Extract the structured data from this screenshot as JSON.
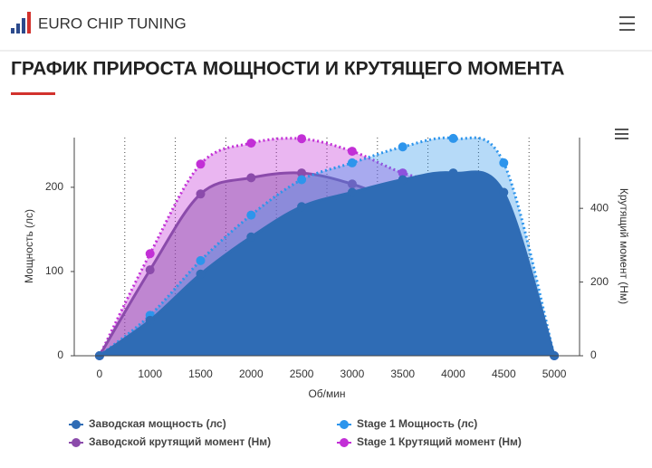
{
  "header": {
    "brand": "EURO CHIP TUNING"
  },
  "chart_data": {
    "type": "area",
    "title": "ГРАФИК ПРИРОСТА МОЩНОСТИ И КРУТЯЩЕГО МОМЕНТА",
    "x_label": "Об/мин",
    "y_label": "Мощность (лс)",
    "y2_label": "Крутящий момент (Нм)",
    "categories": [
      "0",
      "1000",
      "1500",
      "2000",
      "2500",
      "3000",
      "3500",
      "4000",
      "4500",
      "5000"
    ],
    "ylim": [
      0,
      259
    ],
    "yticks": [
      0,
      100,
      200
    ],
    "y2lim": [
      0,
      592
    ],
    "y2ticks": [
      0,
      200,
      400
    ],
    "series": [
      {
        "name": "Stage 1 Крутящий момент (Нм)",
        "color": "#c22fd6",
        "axis": "y2",
        "dashed": true,
        "values": [
          0,
          277,
          520,
          577,
          589,
          555,
          496,
          459,
          380,
          0
        ]
      },
      {
        "name": "Заводской крутящий момент (Нм)",
        "color": "#8b4bab",
        "axis": "y2",
        "dashed": false,
        "values": [
          0,
          233,
          439,
          483,
          496,
          466,
          415,
          383,
          321,
          0
        ]
      },
      {
        "name": "Stage 1 Мощность (лс)",
        "color": "#2d95ec",
        "axis": "y",
        "dashed": true,
        "values": [
          0,
          48,
          113,
          167,
          209,
          229,
          248,
          258,
          229,
          0
        ]
      },
      {
        "name": "Заводская мощность (лс)",
        "color": "#2f6cb5",
        "axis": "y",
        "dashed": false,
        "values": [
          0,
          42,
          97,
          141,
          177,
          194,
          209,
          217,
          194,
          0
        ]
      }
    ],
    "legend_order": [
      3,
      2,
      1,
      0
    ]
  }
}
